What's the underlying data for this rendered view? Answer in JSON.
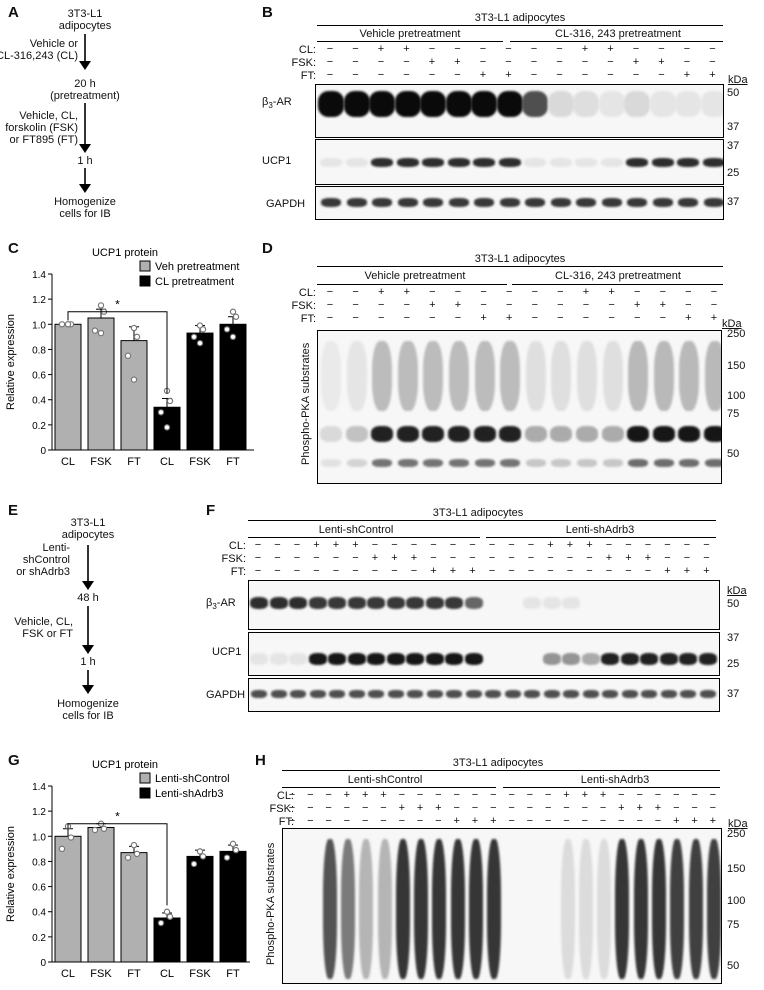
{
  "panel_letters": {
    "a": "A",
    "b": "B",
    "c": "C",
    "d": "D",
    "e": "E",
    "f": "F",
    "g": "G",
    "h": "H"
  },
  "flow_a": {
    "steps": [
      "3T3-L1\nadipocytes",
      "Vehicle or\nCL-316,243 (CL)",
      "20 h\n(pretreatment)",
      "Vehicle, CL,\nforskolin (FSK)\nor FT895 (FT)",
      "1 h",
      "Homogenize\ncells for IB"
    ]
  },
  "flow_e": {
    "steps": [
      "3T3-L1\nadipocytes",
      "Lenti-\nshControl\nor shAdrb3",
      "48 h",
      "Vehicle, CL,\nFSK or FT",
      "1 h",
      "Homogenize\ncells for IB"
    ]
  },
  "panel_b": {
    "title": "3T3-L1 adipocytes",
    "group1": "Vehicle pretreatment",
    "group2": "CL-316, 243 pretreatment",
    "row_labels": [
      "CL:",
      "FSK:",
      "FT:"
    ],
    "signs": [
      [
        "−",
        "−",
        "+",
        "+",
        "−",
        "−",
        "−",
        "−",
        "−",
        "−",
        "+",
        "+",
        "−",
        "−",
        "−",
        "−"
      ],
      [
        "−",
        "−",
        "−",
        "−",
        "+",
        "+",
        "−",
        "−",
        "−",
        "−",
        "−",
        "−",
        "+",
        "+",
        "−",
        "−"
      ],
      [
        "−",
        "−",
        "−",
        "−",
        "−",
        "−",
        "+",
        "+",
        "−",
        "−",
        "−",
        "−",
        "−",
        "−",
        "+",
        "+"
      ]
    ],
    "kda": "kDa",
    "blots": [
      {
        "label": "β3-AR",
        "markers": [
          "50",
          "37"
        ]
      },
      {
        "label": "UCP1",
        "markers": [
          "37",
          "25"
        ]
      },
      {
        "label": "GAPDH",
        "markers": [
          "37"
        ]
      }
    ]
  },
  "panel_d": {
    "title": "3T3-L1 adipocytes",
    "group1": "Vehicle pretreatment",
    "group2": "CL-316, 243 pretreatment",
    "row_labels": [
      "CL:",
      "FSK:",
      "FT:"
    ],
    "signs": [
      [
        "−",
        "−",
        "+",
        "+",
        "−",
        "−",
        "−",
        "−",
        "−",
        "−",
        "+",
        "+",
        "−",
        "−",
        "−",
        "−"
      ],
      [
        "−",
        "−",
        "−",
        "−",
        "+",
        "+",
        "−",
        "−",
        "−",
        "−",
        "−",
        "−",
        "+",
        "+",
        "−",
        "−"
      ],
      [
        "−",
        "−",
        "−",
        "−",
        "−",
        "−",
        "+",
        "+",
        "−",
        "−",
        "−",
        "−",
        "−",
        "−",
        "+",
        "+"
      ]
    ],
    "kda": "kDa",
    "ylabel": "Phospho-PKA substrates",
    "markers": [
      "250",
      "150",
      "100",
      "75",
      "50"
    ]
  },
  "panel_f": {
    "title": "3T3-L1 adipocytes",
    "group1": "Lenti-shControl",
    "group2": "Lenti-shAdrb3",
    "row_labels": [
      "CL:",
      "FSK:",
      "FT:"
    ],
    "signs": [
      [
        "−",
        "−",
        "−",
        "+",
        "+",
        "+",
        "−",
        "−",
        "−",
        "−",
        "−",
        "−",
        "−",
        "−",
        "−",
        "+",
        "+",
        "+",
        "−",
        "−",
        "−",
        "−",
        "−",
        "−"
      ],
      [
        "−",
        "−",
        "−",
        "−",
        "−",
        "−",
        "+",
        "+",
        "+",
        "−",
        "−",
        "−",
        "−",
        "−",
        "−",
        "−",
        "−",
        "−",
        "+",
        "+",
        "+",
        "−",
        "−",
        "−"
      ],
      [
        "−",
        "−",
        "−",
        "−",
        "−",
        "−",
        "−",
        "−",
        "−",
        "+",
        "+",
        "+",
        "−",
        "−",
        "−",
        "−",
        "−",
        "−",
        "−",
        "−",
        "−",
        "+",
        "+",
        "+"
      ]
    ],
    "kda": "kDa",
    "blots": [
      {
        "label": "β3-AR",
        "markers": [
          "50"
        ]
      },
      {
        "label": "UCP1",
        "markers": [
          "37",
          "25"
        ]
      },
      {
        "label": "GAPDH",
        "markers": [
          "37"
        ]
      }
    ]
  },
  "panel_h": {
    "title": "3T3-L1 adipocytes",
    "group1": "Lenti-shControl",
    "group2": "Lenti-shAdrb3",
    "row_labels": [
      "CL:",
      "FSK:",
      "FT:"
    ],
    "signs": [
      [
        "−",
        "−",
        "−",
        "+",
        "+",
        "+",
        "−",
        "−",
        "−",
        "−",
        "−",
        "−",
        "−",
        "−",
        "−",
        "+",
        "+",
        "+",
        "−",
        "−",
        "−",
        "−",
        "−",
        "−"
      ],
      [
        "−",
        "−",
        "−",
        "−",
        "−",
        "−",
        "+",
        "+",
        "+",
        "−",
        "−",
        "−",
        "−",
        "−",
        "−",
        "−",
        "−",
        "−",
        "+",
        "+",
        "+",
        "−",
        "−",
        "−"
      ],
      [
        "−",
        "−",
        "−",
        "−",
        "−",
        "−",
        "−",
        "−",
        "−",
        "+",
        "+",
        "+",
        "−",
        "−",
        "−",
        "−",
        "−",
        "−",
        "−",
        "−",
        "−",
        "+",
        "+",
        "+"
      ]
    ],
    "kda": "kDa",
    "ylabel": "Phospho-PKA substrates",
    "markers": [
      "250",
      "150",
      "100",
      "75",
      "50"
    ]
  },
  "chart_data": [
    {
      "type": "bar",
      "title": "UCP1 protein",
      "ylabel": "Relative expression",
      "categories": [
        "CL",
        "FSK",
        "FT",
        "CL",
        "FSK",
        "FT"
      ],
      "series": [
        {
          "name": "Veh pretreatment",
          "color": "#b0b0b0",
          "indices": [
            0,
            1,
            2
          ]
        },
        {
          "name": "CL pretreatment",
          "color": "#000000",
          "indices": [
            3,
            4,
            5
          ]
        }
      ],
      "values": [
        1.0,
        1.05,
        0.87,
        0.34,
        0.93,
        1.0
      ],
      "errors": [
        0.005,
        0.07,
        0.11,
        0.07,
        0.06,
        0.06
      ],
      "points": [
        [
          1.0,
          1.0,
          1.0,
          1.0
        ],
        [
          1.15,
          1.1,
          0.95,
          0.93
        ],
        [
          0.97,
          0.9,
          0.75,
          0.56
        ],
        [
          0.47,
          0.39,
          0.3,
          0.18
        ],
        [
          0.99,
          0.96,
          0.9,
          0.85
        ],
        [
          1.1,
          1.06,
          0.96,
          0.9
        ]
      ],
      "ylim": [
        0,
        1.4
      ],
      "yticks": [
        "0",
        "0.2",
        "0.4",
        "0.6",
        "0.8",
        "1.0",
        "1.2",
        "1.4"
      ],
      "significance": {
        "from": 0,
        "to": 3,
        "label": "*"
      },
      "legend_position": "top-right"
    },
    {
      "type": "bar",
      "title": "UCP1 protein",
      "ylabel": "Relative expression",
      "categories": [
        "CL",
        "FSK",
        "FT",
        "CL",
        "FSK",
        "FT"
      ],
      "series": [
        {
          "name": "Lenti-shControl",
          "color": "#b0b0b0",
          "indices": [
            0,
            1,
            2
          ]
        },
        {
          "name": "Lenti-shAdrb3",
          "color": "#000000",
          "indices": [
            3,
            4,
            5
          ]
        }
      ],
      "values": [
        1.0,
        1.07,
        0.87,
        0.35,
        0.84,
        0.88
      ],
      "errors": [
        0.06,
        0.03,
        0.05,
        0.04,
        0.05,
        0.05
      ],
      "points": [
        [
          1.08,
          0.99,
          0.9
        ],
        [
          1.1,
          1.06,
          1.05
        ],
        [
          0.93,
          0.86,
          0.83
        ],
        [
          0.4,
          0.36,
          0.31
        ],
        [
          0.88,
          0.84,
          0.78
        ],
        [
          0.94,
          0.89,
          0.83
        ]
      ],
      "ylim": [
        0,
        1.4
      ],
      "yticks": [
        "0",
        "0.2",
        "0.4",
        "0.6",
        "0.8",
        "1.0",
        "1.2",
        "1.4"
      ],
      "significance": {
        "from": 0,
        "to": 3,
        "label": "*"
      },
      "legend_position": "top-right"
    }
  ]
}
